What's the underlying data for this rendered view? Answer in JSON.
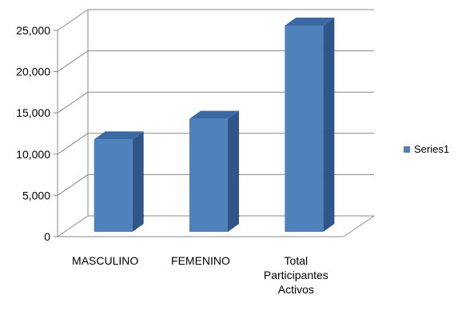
{
  "chart_data": {
    "type": "bar",
    "title": "",
    "xlabel": "",
    "ylabel": "",
    "categories": [
      [
        "MASCULINO"
      ],
      [
        "FEMENINO"
      ],
      [
        "Total",
        "Participantes",
        "Activos"
      ]
    ],
    "series": [
      {
        "name": "Series1",
        "values": [
          11200,
          13700,
          25000
        ]
      }
    ],
    "ylim": [
      0,
      25000
    ],
    "yticks": [
      "0",
      "5,000",
      "10,000",
      "15,000",
      "20,000",
      "25,000"
    ],
    "ytick_values": [
      0,
      5000,
      10000,
      15000,
      20000,
      25000
    ],
    "grid": true,
    "three_d": true,
    "legend": {
      "position": "right",
      "label": "Series1"
    },
    "colors": {
      "bar_front": "#4f81bd",
      "bar_side": "#2f5589",
      "bar_top": "#3b6aa3",
      "grid": "#888888",
      "wall": "#ffffff"
    }
  }
}
